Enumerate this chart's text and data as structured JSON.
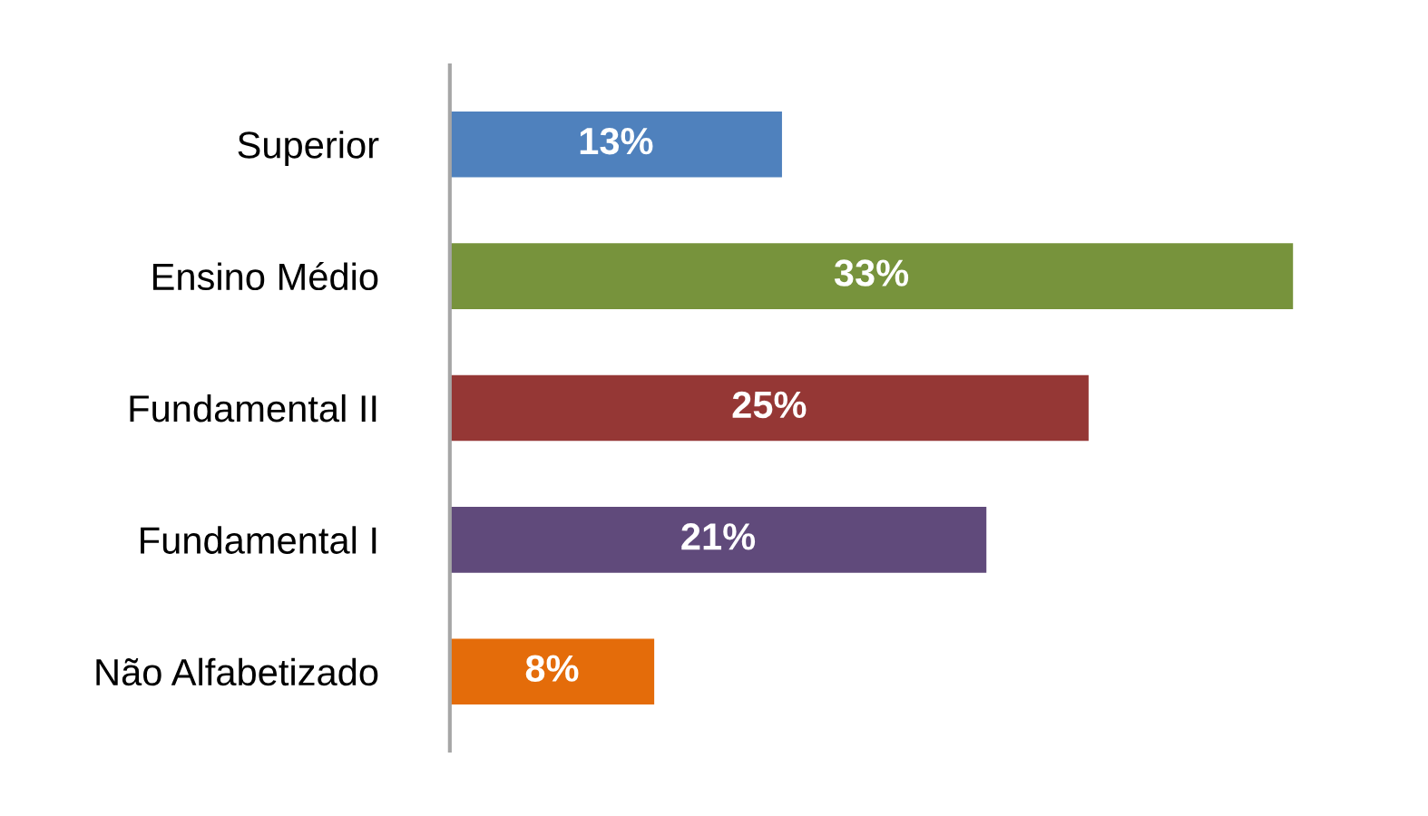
{
  "chart_data": {
    "type": "bar",
    "orientation": "horizontal",
    "categories": [
      "Superior",
      "Ensino Médio",
      "Fundamental II",
      "Fundamental I",
      "Não Alfabetizado"
    ],
    "values": [
      13,
      33,
      25,
      21,
      8
    ],
    "colors": [
      "#4f81bd",
      "#77933c",
      "#953735",
      "#604a7b",
      "#e46c0a"
    ],
    "value_labels": [
      "13%",
      "33%",
      "25%",
      "21%",
      "8%"
    ],
    "grid": false,
    "legend": false
  }
}
